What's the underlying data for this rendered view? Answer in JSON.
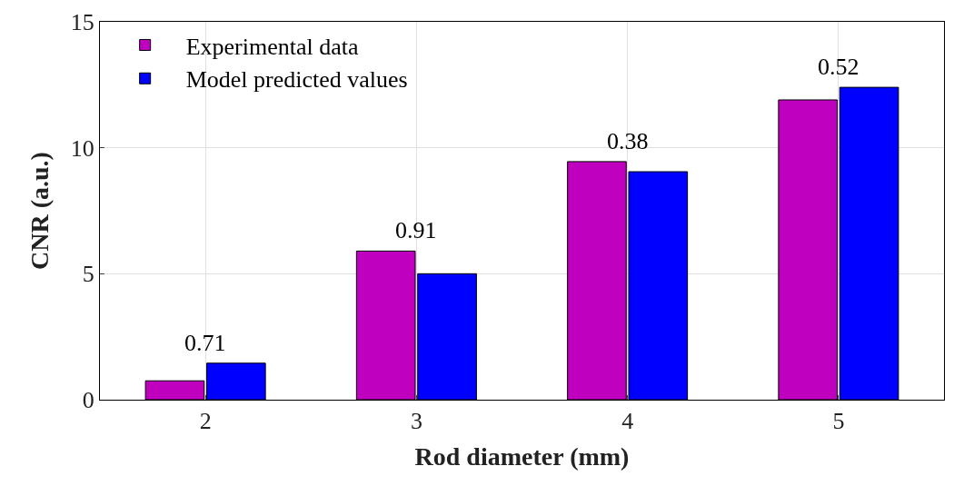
{
  "chart_data": {
    "type": "bar",
    "xlabel": "Rod diameter (mm)",
    "ylabel": "CNR (a.u.)",
    "categories": [
      "2",
      "3",
      "4",
      "5"
    ],
    "series": [
      {
        "name": "Experimental data",
        "color": "#bf00bf",
        "values": [
          0.75,
          5.9,
          9.45,
          11.9
        ]
      },
      {
        "name": "Model predicted values",
        "color": "#0000ff",
        "values": [
          1.45,
          5.0,
          9.05,
          12.4
        ]
      }
    ],
    "annotations": [
      {
        "text": "0.71",
        "x": "2",
        "y": 1.45
      },
      {
        "text": "0.91",
        "x": "3",
        "y": 5.9
      },
      {
        "text": "0.38",
        "x": "4",
        "y": 9.45
      },
      {
        "text": "0.52",
        "x": "5",
        "y": 12.4
      }
    ],
    "ylim": [
      0,
      15
    ],
    "yticks": [
      0,
      5,
      10,
      15
    ],
    "grid": true,
    "legend": "top left"
  }
}
